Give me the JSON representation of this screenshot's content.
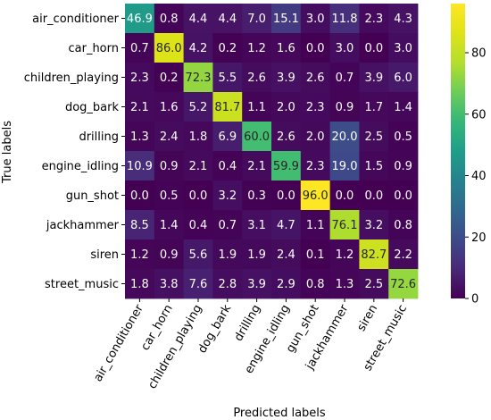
{
  "chart_data": {
    "type": "heatmap",
    "title": "",
    "xlabel": "Predicted labels",
    "ylabel": "True labels",
    "categories": [
      "air_conditioner",
      "car_horn",
      "children_playing",
      "dog_bark",
      "drilling",
      "engine_idling",
      "gun_shot",
      "jackhammer",
      "siren",
      "street_music"
    ],
    "values": [
      [
        46.9,
        0.8,
        4.4,
        4.4,
        7.0,
        15.1,
        3.0,
        11.8,
        2.3,
        4.3
      ],
      [
        0.7,
        86.0,
        4.2,
        0.2,
        1.2,
        1.6,
        0.0,
        3.0,
        0.0,
        3.0
      ],
      [
        2.3,
        0.2,
        72.3,
        5.5,
        2.6,
        3.9,
        2.6,
        0.7,
        3.9,
        6.0
      ],
      [
        2.1,
        1.6,
        5.2,
        81.7,
        1.1,
        2.0,
        2.3,
        0.9,
        1.7,
        1.4
      ],
      [
        1.3,
        2.4,
        1.8,
        6.9,
        60.0,
        2.6,
        2.0,
        20.0,
        2.5,
        0.5
      ],
      [
        10.9,
        0.9,
        2.1,
        0.4,
        2.1,
        59.9,
        2.3,
        19.0,
        1.5,
        0.9
      ],
      [
        0.0,
        0.5,
        0.0,
        3.2,
        0.3,
        0.0,
        96.0,
        0.0,
        0.0,
        0.0
      ],
      [
        8.5,
        1.4,
        0.4,
        0.7,
        3.1,
        4.7,
        1.1,
        76.1,
        3.2,
        0.8
      ],
      [
        1.2,
        0.9,
        5.6,
        1.9,
        1.9,
        2.4,
        0.1,
        1.2,
        82.7,
        2.2
      ],
      [
        1.8,
        3.8,
        7.6,
        2.8,
        3.9,
        2.9,
        0.8,
        1.3,
        2.5,
        72.6
      ]
    ],
    "colorbar": {
      "min": 0,
      "max": 96,
      "ticks": [
        0,
        20,
        40,
        60,
        80
      ],
      "colormap": "viridis"
    },
    "grid": false,
    "legend": "colorbar-right"
  }
}
